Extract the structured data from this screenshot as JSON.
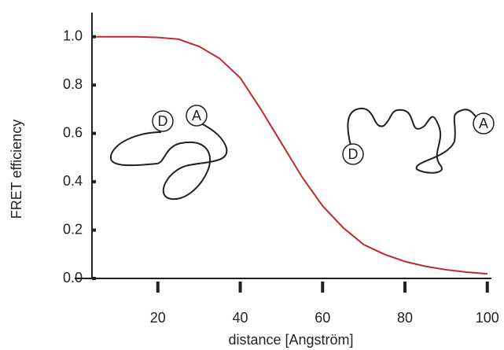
{
  "chart_data": {
    "type": "line",
    "x_label": "distance [Angström]",
    "y_label": "FRET efficiency",
    "x": [
      5,
      10,
      15,
      20,
      25,
      30,
      35,
      40,
      45,
      50,
      55,
      60,
      65,
      70,
      75,
      80,
      85,
      90,
      95,
      100
    ],
    "series": [
      {
        "color": "#c0282d",
        "values": [
          1.0,
          1.0,
          1.0,
          0.997,
          0.99,
          0.96,
          0.91,
          0.83,
          0.7,
          0.56,
          0.42,
          0.3,
          0.21,
          0.14,
          0.1,
          0.07,
          0.05,
          0.036,
          0.026,
          0.019
        ]
      }
    ],
    "xlim": [
      4,
      101
    ],
    "ylim": [
      0,
      1.1
    ],
    "xticks": [
      20,
      40,
      60,
      80,
      100
    ],
    "yticks": [
      {
        "value": 0,
        "label": "0.0"
      },
      0.2,
      0.4,
      0.6,
      0.8,
      {
        "value": 1,
        "label": "1.0"
      }
    ],
    "annotations": [
      "D",
      "A",
      "D",
      "A"
    ]
  }
}
